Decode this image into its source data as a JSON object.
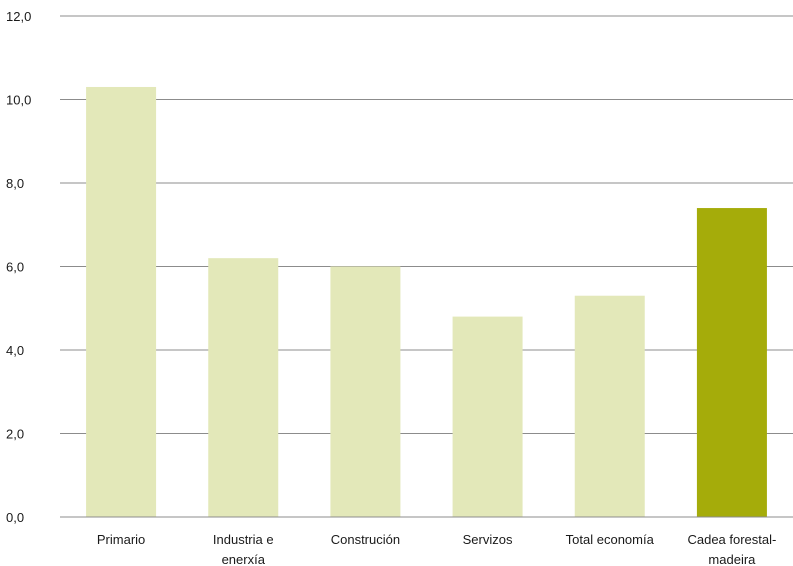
{
  "chart_data": {
    "type": "bar",
    "categories": [
      [
        "Primario"
      ],
      [
        "Industria e",
        "enerxía"
      ],
      [
        "Construción"
      ],
      [
        "Servizos"
      ],
      [
        "Total economía"
      ],
      [
        "Cadea forestal-",
        "madeira"
      ]
    ],
    "values": [
      10.3,
      6.2,
      6.0,
      4.8,
      5.3,
      7.4
    ],
    "ylim": [
      0,
      12
    ],
    "yticks": [
      "0,0",
      "2,0",
      "4,0",
      "6,0",
      "8,0",
      "10,0",
      "12,0"
    ],
    "grid": true,
    "legend": "none",
    "colors": {
      "default_bar": "#e3e8b9",
      "highlight_bar": "#a5ac0a",
      "grid": "#8c8c8c"
    },
    "highlight_index": 5
  }
}
